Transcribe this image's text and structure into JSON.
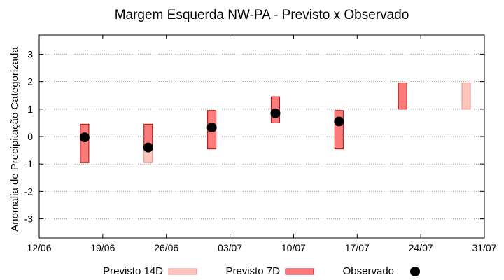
{
  "chart_data": {
    "type": "bar",
    "title": "Margem Esquerda NW-PA - Previsto x Observado",
    "ylabel": "Anomalia de Precipitação Categorizada",
    "xlabel": "",
    "x_tick_labels": [
      "12/06",
      "19/06",
      "26/06",
      "03/07",
      "10/07",
      "17/07",
      "24/07",
      "31/07"
    ],
    "xlim_days": [
      0,
      49
    ],
    "y_ticks": [
      3,
      2,
      1,
      0,
      -1,
      -2,
      -3
    ],
    "y_tick_labels": [
      "3",
      "2",
      "1",
      "0",
      "-1",
      "-2",
      "-3"
    ],
    "ylim": [
      -3.7,
      3.7
    ],
    "grid": true,
    "legend_position": "bottom",
    "series": [
      {
        "name": "Previsto 14D",
        "kind": "range-bar",
        "color": "#fbc4bd",
        "stroke": "#f08c80",
        "points": [
          {
            "day": 5,
            "low": -0.95,
            "high": 0.45
          },
          {
            "day": 12,
            "low": -0.95,
            "high": 0.45
          },
          {
            "day": 19,
            "low": -0.45,
            "high": 0.95
          },
          {
            "day": 26,
            "low": 0.5,
            "high": 1.45
          },
          {
            "day": 33,
            "low": -0.45,
            "high": 0.95
          },
          {
            "day": 40,
            "low": 1.0,
            "high": 1.95
          },
          {
            "day": 47,
            "low": 1.0,
            "high": 1.95
          }
        ]
      },
      {
        "name": "Previsto 7D",
        "kind": "range-bar",
        "color": "#fb7a7a",
        "stroke": "#b01010",
        "points": [
          {
            "day": 5,
            "low": -0.95,
            "high": 0.45
          },
          {
            "day": 12,
            "low": -0.4,
            "high": 0.45
          },
          {
            "day": 19,
            "low": -0.45,
            "high": 0.95
          },
          {
            "day": 26,
            "low": 0.5,
            "high": 1.45
          },
          {
            "day": 33,
            "low": -0.45,
            "high": 0.95
          },
          {
            "day": 40,
            "low": 1.0,
            "high": 1.95
          }
        ]
      },
      {
        "name": "Observado",
        "kind": "point",
        "color": "#000000",
        "points": [
          {
            "day": 5,
            "value": -0.03
          },
          {
            "day": 12,
            "value": -0.4
          },
          {
            "day": 19,
            "value": 0.33
          },
          {
            "day": 26,
            "value": 0.85
          },
          {
            "day": 33,
            "value": 0.55
          }
        ]
      }
    ]
  }
}
